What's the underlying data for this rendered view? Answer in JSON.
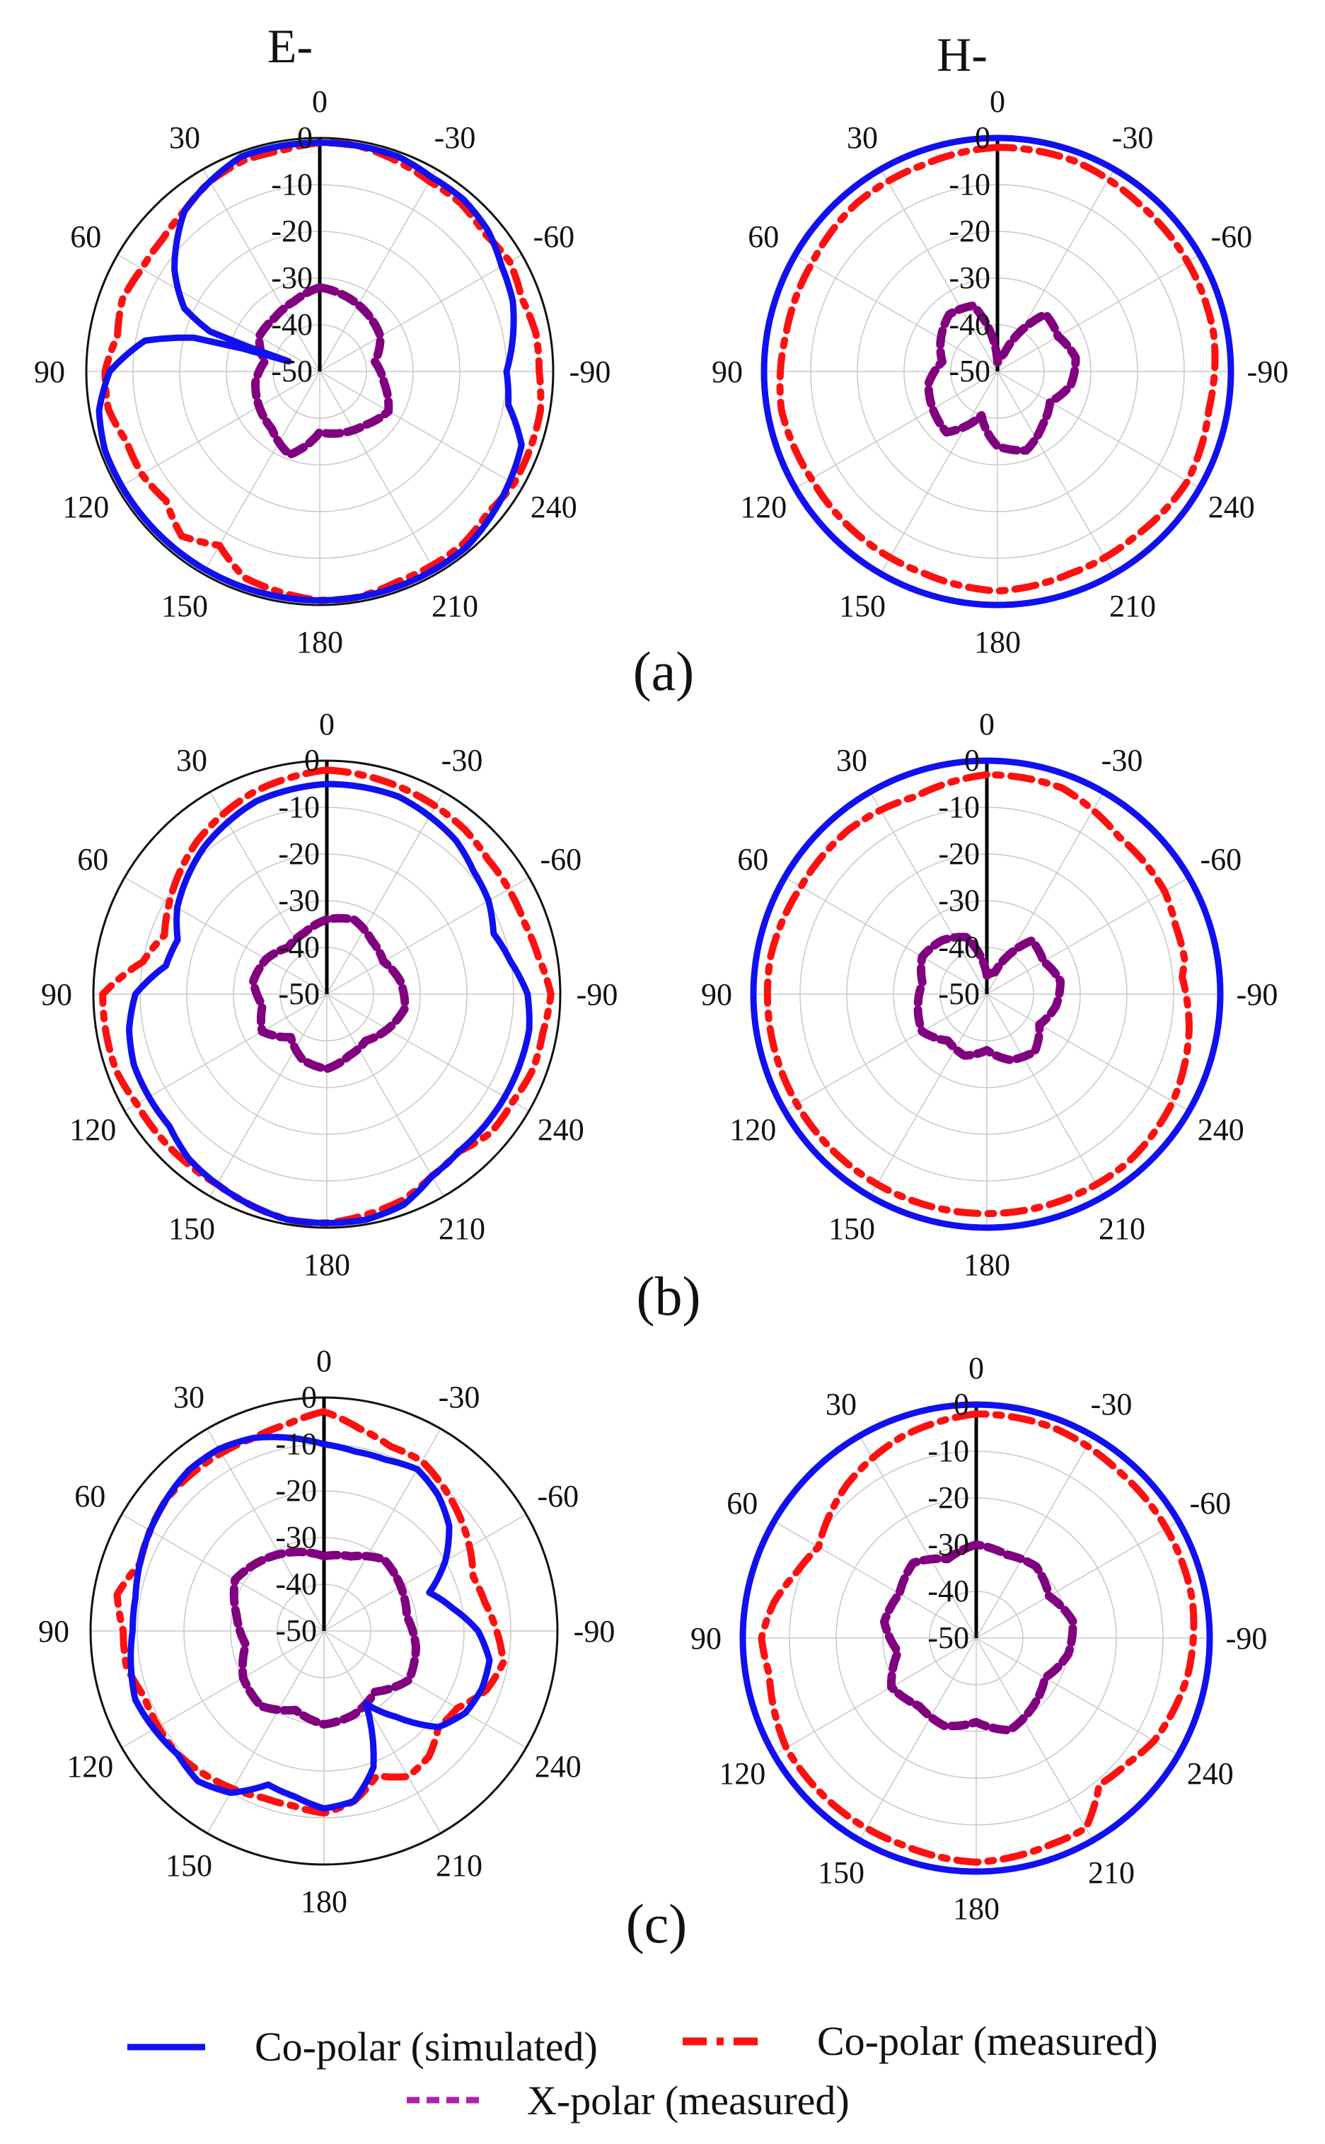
{
  "column_labels": [
    "E-",
    "H-"
  ],
  "legend": {
    "simulated": "Co-polar (simulated)",
    "measured": "Co-polar (measured)",
    "xpolar": "X-polar (measured)"
  },
  "colors": {
    "simulated": "#1010f0",
    "measured": "#ff1010",
    "xpolar": "#800080",
    "grid": "#c8c8c8",
    "rim": "#111111",
    "axis": "#000000"
  },
  "chart_data": [
    {
      "panel": "(a)",
      "plane": "E-",
      "type": "polar",
      "angle_labels": [
        "0",
        "-30",
        "-60",
        "-90",
        "240",
        "210",
        "180",
        "150",
        "120",
        "90",
        "60",
        "30"
      ],
      "radial_labels": [
        "0",
        "-10",
        "-20",
        "-30",
        "-40",
        "-50"
      ],
      "rlim": [
        -50,
        0
      ],
      "series": [
        {
          "name": "Co-polar (simulated)",
          "style": "solid",
          "angles": [
            0,
            20,
            40,
            55,
            60,
            65,
            70,
            72,
            75,
            80,
            90,
            100,
            110,
            120,
            130,
            140,
            150,
            160,
            170,
            180,
            190,
            200,
            210,
            220,
            230,
            240,
            250,
            260,
            270,
            280,
            290,
            300,
            310,
            320,
            330,
            340,
            350
          ],
          "values": [
            -1,
            -1,
            -5,
            -12,
            -15,
            -18,
            -25,
            -43,
            -22,
            -12,
            -5,
            -2,
            -1,
            -1,
            -1,
            -1,
            -1,
            -1,
            -1,
            -1,
            -1,
            -1,
            -1,
            -1,
            -2,
            -3,
            -4,
            -9,
            -10,
            -8,
            -6,
            -5,
            -3,
            -2,
            -2,
            -1,
            -1
          ]
        },
        {
          "name": "Co-polar (measured)",
          "style": "dashdot",
          "angles": [
            0,
            10,
            20,
            30,
            40,
            50,
            60,
            70,
            80,
            90,
            100,
            110,
            120,
            130,
            140,
            150,
            160,
            170,
            180,
            190,
            200,
            210,
            220,
            230,
            240,
            250,
            260,
            270,
            280,
            290,
            300,
            310,
            320,
            330,
            340,
            350
          ],
          "values": [
            -1,
            -2,
            -2,
            -3,
            -5,
            -6,
            -6,
            -5,
            -6,
            -4,
            -4,
            -6,
            -6,
            -7,
            -4,
            -7,
            -3,
            -2,
            -1,
            -1,
            -2,
            -2,
            -2,
            -3,
            -2,
            -2,
            -2,
            -3,
            -3,
            -4,
            -3,
            -4,
            -3,
            -3,
            -2,
            -1
          ]
        },
        {
          "name": "X-polar (measured)",
          "style": "dashed",
          "angles": [
            0,
            20,
            40,
            60,
            80,
            100,
            120,
            140,
            160,
            180,
            200,
            220,
            240,
            260,
            280,
            300,
            320,
            340
          ],
          "values": [
            -32,
            -34,
            -35,
            -35,
            -38,
            -36,
            -35,
            -34,
            -31,
            -37,
            -36,
            -35,
            -33,
            -36,
            -38,
            -35,
            -34,
            -33
          ]
        }
      ]
    },
    {
      "panel": "(a)",
      "plane": "H-",
      "type": "polar",
      "angle_labels": [
        "0",
        "-30",
        "-60",
        "-90",
        "240",
        "210",
        "180",
        "150",
        "120",
        "90",
        "60",
        "30"
      ],
      "radial_labels": [
        "0",
        "-10",
        "-20",
        "-30",
        "-40",
        "-50"
      ],
      "rlim": [
        -50,
        0
      ],
      "series": [
        {
          "name": "Co-polar (simulated)",
          "style": "solid",
          "angles": [
            0,
            30,
            60,
            90,
            120,
            150,
            180,
            210,
            240,
            270,
            300,
            330
          ],
          "values": [
            0,
            0,
            0,
            0,
            0,
            0,
            0,
            0,
            0,
            0,
            0,
            0
          ]
        },
        {
          "name": "Co-polar (measured)",
          "style": "dashdot",
          "angles": [
            0,
            20,
            40,
            60,
            80,
            100,
            120,
            140,
            160,
            180,
            200,
            220,
            240,
            260,
            280,
            300,
            320,
            340
          ],
          "values": [
            -2,
            -3,
            -3,
            -4,
            -4,
            -3,
            -4,
            -4,
            -4,
            -3,
            -4,
            -4,
            -3,
            -4,
            -3,
            -3,
            -3,
            -2
          ]
        },
        {
          "name": "X-polar (measured)",
          "style": "dashed",
          "angles": [
            0,
            20,
            40,
            60,
            80,
            100,
            120,
            140,
            160,
            180,
            200,
            220,
            240,
            260,
            280,
            300,
            320,
            340
          ],
          "values": [
            -48,
            -35,
            -34,
            -36,
            -38,
            -35,
            -34,
            -33,
            -40,
            -34,
            -32,
            -35,
            -37,
            -34,
            -33,
            -35,
            -34,
            -46
          ]
        }
      ]
    },
    {
      "panel": "(b)",
      "plane": "E-",
      "type": "polar",
      "angle_labels": [
        "0",
        "-30",
        "-60",
        "-90",
        "240",
        "210",
        "180",
        "150",
        "120",
        "90",
        "60",
        "30"
      ],
      "radial_labels": [
        "0",
        "-10",
        "-20",
        "-30",
        "-40",
        "-50"
      ],
      "rlim": [
        -50,
        0
      ],
      "series": [
        {
          "name": "Co-polar (simulated)",
          "style": "solid",
          "angles": [
            0,
            20,
            40,
            60,
            70,
            80,
            90,
            100,
            110,
            120,
            130,
            140,
            150,
            160,
            170,
            180,
            190,
            200,
            210,
            220,
            230,
            240,
            250,
            260,
            270,
            280,
            290,
            300,
            310,
            320,
            340
          ],
          "values": [
            -5,
            -6,
            -9,
            -13,
            -16,
            -15,
            -9,
            -7,
            -6,
            -6,
            -6,
            -4,
            -3,
            -2,
            -1,
            -1,
            -1,
            -2,
            -5,
            -6,
            -6,
            -6,
            -6,
            -6,
            -7,
            -10,
            -12,
            -10,
            -9,
            -7,
            -5
          ]
        },
        {
          "name": "Co-polar (measured)",
          "style": "dashdot",
          "angles": [
            0,
            20,
            40,
            60,
            70,
            80,
            90,
            100,
            110,
            120,
            130,
            140,
            150,
            160,
            170,
            180,
            190,
            200,
            210,
            220,
            230,
            240,
            250,
            260,
            270,
            280,
            290,
            300,
            310,
            320,
            340
          ],
          "values": [
            -2,
            -4,
            -7,
            -11,
            -13,
            -10,
            -2,
            -2,
            -2,
            -3,
            -3,
            -3,
            -3,
            -2,
            -1,
            -1,
            -2,
            -3,
            -5,
            -6,
            -4,
            -4,
            -3,
            -3,
            -2,
            -4,
            -5,
            -5,
            -5,
            -4,
            -3
          ]
        },
        {
          "name": "X-polar (measured)",
          "style": "dashed",
          "angles": [
            0,
            20,
            40,
            60,
            80,
            100,
            120,
            140,
            160,
            180,
            200,
            220,
            240,
            260,
            280,
            300,
            320,
            340
          ],
          "values": [
            -34,
            -36,
            -37,
            -35,
            -34,
            -36,
            -34,
            -38,
            -35,
            -34,
            -36,
            -37,
            -35,
            -33,
            -34,
            -36,
            -35,
            -33
          ]
        }
      ]
    },
    {
      "panel": "(b)",
      "plane": "H-",
      "type": "polar",
      "angle_labels": [
        "0",
        "-30",
        "-60",
        "-90",
        "240",
        "210",
        "180",
        "150",
        "120",
        "90",
        "60",
        "30"
      ],
      "radial_labels": [
        "0",
        "-10",
        "-20",
        "-30",
        "-40",
        "-50"
      ],
      "rlim": [
        -50,
        0
      ],
      "series": [
        {
          "name": "Co-polar (simulated)",
          "style": "solid",
          "angles": [
            0,
            30,
            60,
            90,
            120,
            150,
            180,
            210,
            240,
            270,
            300,
            330
          ],
          "values": [
            0,
            0,
            0,
            0,
            0,
            0,
            0,
            0,
            0,
            0,
            0,
            0
          ]
        },
        {
          "name": "Co-polar (measured)",
          "style": "dashdot",
          "angles": [
            0,
            20,
            40,
            60,
            80,
            100,
            120,
            140,
            160,
            180,
            200,
            220,
            240,
            260,
            275,
            280,
            290,
            300,
            320,
            340
          ],
          "values": [
            -3,
            -5,
            -4,
            -4,
            -3,
            -3,
            -3,
            -3,
            -3,
            -3,
            -3,
            -3,
            -4,
            -6,
            -8,
            -7,
            -7,
            -6,
            -6,
            -3
          ]
        },
        {
          "name": "X-polar (measured)",
          "style": "dashed",
          "angles": [
            0,
            20,
            40,
            60,
            80,
            100,
            120,
            140,
            160,
            180,
            200,
            220,
            240,
            260,
            280,
            300,
            320,
            340
          ],
          "values": [
            -46,
            -37,
            -35,
            -34,
            -36,
            -35,
            -34,
            -37,
            -36,
            -38,
            -35,
            -34,
            -37,
            -35,
            -34,
            -36,
            -35,
            -45
          ]
        }
      ]
    },
    {
      "panel": "(c)",
      "plane": "E-",
      "type": "polar",
      "angle_labels": [
        "0",
        "-30",
        "-60",
        "-90",
        "240",
        "210",
        "180",
        "150",
        "120",
        "90",
        "60",
        "30"
      ],
      "radial_labels": [
        "0",
        "-10",
        "-20",
        "-30",
        "-40",
        "-50"
      ],
      "rlim": [
        -50,
        0
      ],
      "series": [
        {
          "name": "Co-polar (simulated)",
          "style": "solid",
          "angles": [
            0,
            10,
            20,
            30,
            40,
            50,
            60,
            70,
            80,
            90,
            100,
            110,
            120,
            130,
            140,
            150,
            160,
            170,
            180,
            190,
            200,
            210,
            220,
            230,
            240,
            250,
            260,
            270,
            280,
            290,
            300,
            310,
            320,
            330,
            340,
            350
          ],
          "values": [
            -10,
            -8,
            -6,
            -5,
            -5,
            -6,
            -7,
            -8,
            -9,
            -9,
            -8,
            -7,
            -8,
            -9,
            -8,
            -10,
            -15,
            -14,
            -12,
            -13,
            -19,
            -32,
            -26,
            -18,
            -15,
            -14,
            -14,
            -17,
            -22,
            -26,
            -20,
            -15,
            -12,
            -10,
            -11,
            -11
          ]
        },
        {
          "name": "Co-polar (measured)",
          "style": "dashdot",
          "angles": [
            0,
            10,
            20,
            30,
            40,
            50,
            60,
            70,
            80,
            90,
            100,
            110,
            120,
            130,
            140,
            150,
            160,
            170,
            180,
            190,
            200,
            210,
            220,
            230,
            240,
            250,
            260,
            270,
            280,
            290,
            300,
            310,
            320,
            330,
            340,
            350
          ],
          "values": [
            -3,
            -5,
            -6,
            -6,
            -6,
            -6,
            -7,
            -8,
            -5,
            -7,
            -7,
            -9,
            -9,
            -9,
            -10,
            -11,
            -12,
            -12,
            -11,
            -13,
            -17,
            -14,
            -15,
            -18,
            -17,
            -13,
            -11,
            -13,
            -15,
            -16,
            -14,
            -12,
            -10,
            -8,
            -8,
            -6
          ]
        },
        {
          "name": "X-polar (measured)",
          "style": "dashed",
          "angles": [
            0,
            20,
            40,
            60,
            80,
            100,
            120,
            140,
            160,
            180,
            200,
            220,
            240,
            260,
            280,
            300,
            320,
            340
          ],
          "values": [
            -34,
            -32,
            -30,
            -28,
            -31,
            -33,
            -30,
            -29,
            -32,
            -30,
            -31,
            -33,
            -29,
            -30,
            -32,
            -31,
            -30,
            -33
          ]
        }
      ]
    },
    {
      "panel": "(c)",
      "plane": "H-",
      "type": "polar",
      "angle_labels": [
        "0",
        "-30",
        "-60",
        "-90",
        "240",
        "210",
        "180",
        "150",
        "120",
        "90",
        "60",
        "30"
      ],
      "radial_labels": [
        "0",
        "-10",
        "-20",
        "-30",
        "-40",
        "-50"
      ],
      "rlim": [
        -50,
        0
      ],
      "series": [
        {
          "name": "Co-polar (simulated)",
          "style": "solid",
          "angles": [
            0,
            30,
            60,
            90,
            120,
            150,
            180,
            210,
            240,
            270,
            300,
            330
          ],
          "values": [
            0,
            0,
            0,
            0,
            0,
            0,
            0,
            0,
            0,
            0,
            0,
            0
          ]
        },
        {
          "name": "Co-polar (measured)",
          "style": "dashdot",
          "angles": [
            0,
            20,
            40,
            50,
            60,
            70,
            80,
            90,
            100,
            110,
            120,
            140,
            160,
            180,
            200,
            210,
            220,
            230,
            240,
            260,
            280,
            300,
            320,
            340
          ],
          "values": [
            -2,
            -4,
            -7,
            -9,
            -11,
            -9,
            -6,
            -4,
            -5,
            -4,
            -3,
            -3,
            -3,
            -2,
            -3,
            -3,
            -9,
            -8,
            -6,
            -4,
            -3,
            -3,
            -3,
            -2
          ]
        },
        {
          "name": "X-polar (measured)",
          "style": "dashed",
          "angles": [
            0,
            20,
            40,
            60,
            80,
            100,
            120,
            140,
            160,
            180,
            200,
            220,
            240,
            260,
            280,
            300,
            320,
            340
          ],
          "values": [
            -30,
            -32,
            -29,
            -31,
            -30,
            -33,
            -29,
            -31,
            -30,
            -32,
            -29,
            -31,
            -33,
            -30,
            -29,
            -32,
            -30,
            -31
          ]
        }
      ]
    }
  ],
  "panel_labels": [
    "(a)",
    "(b)",
    "(c)"
  ]
}
